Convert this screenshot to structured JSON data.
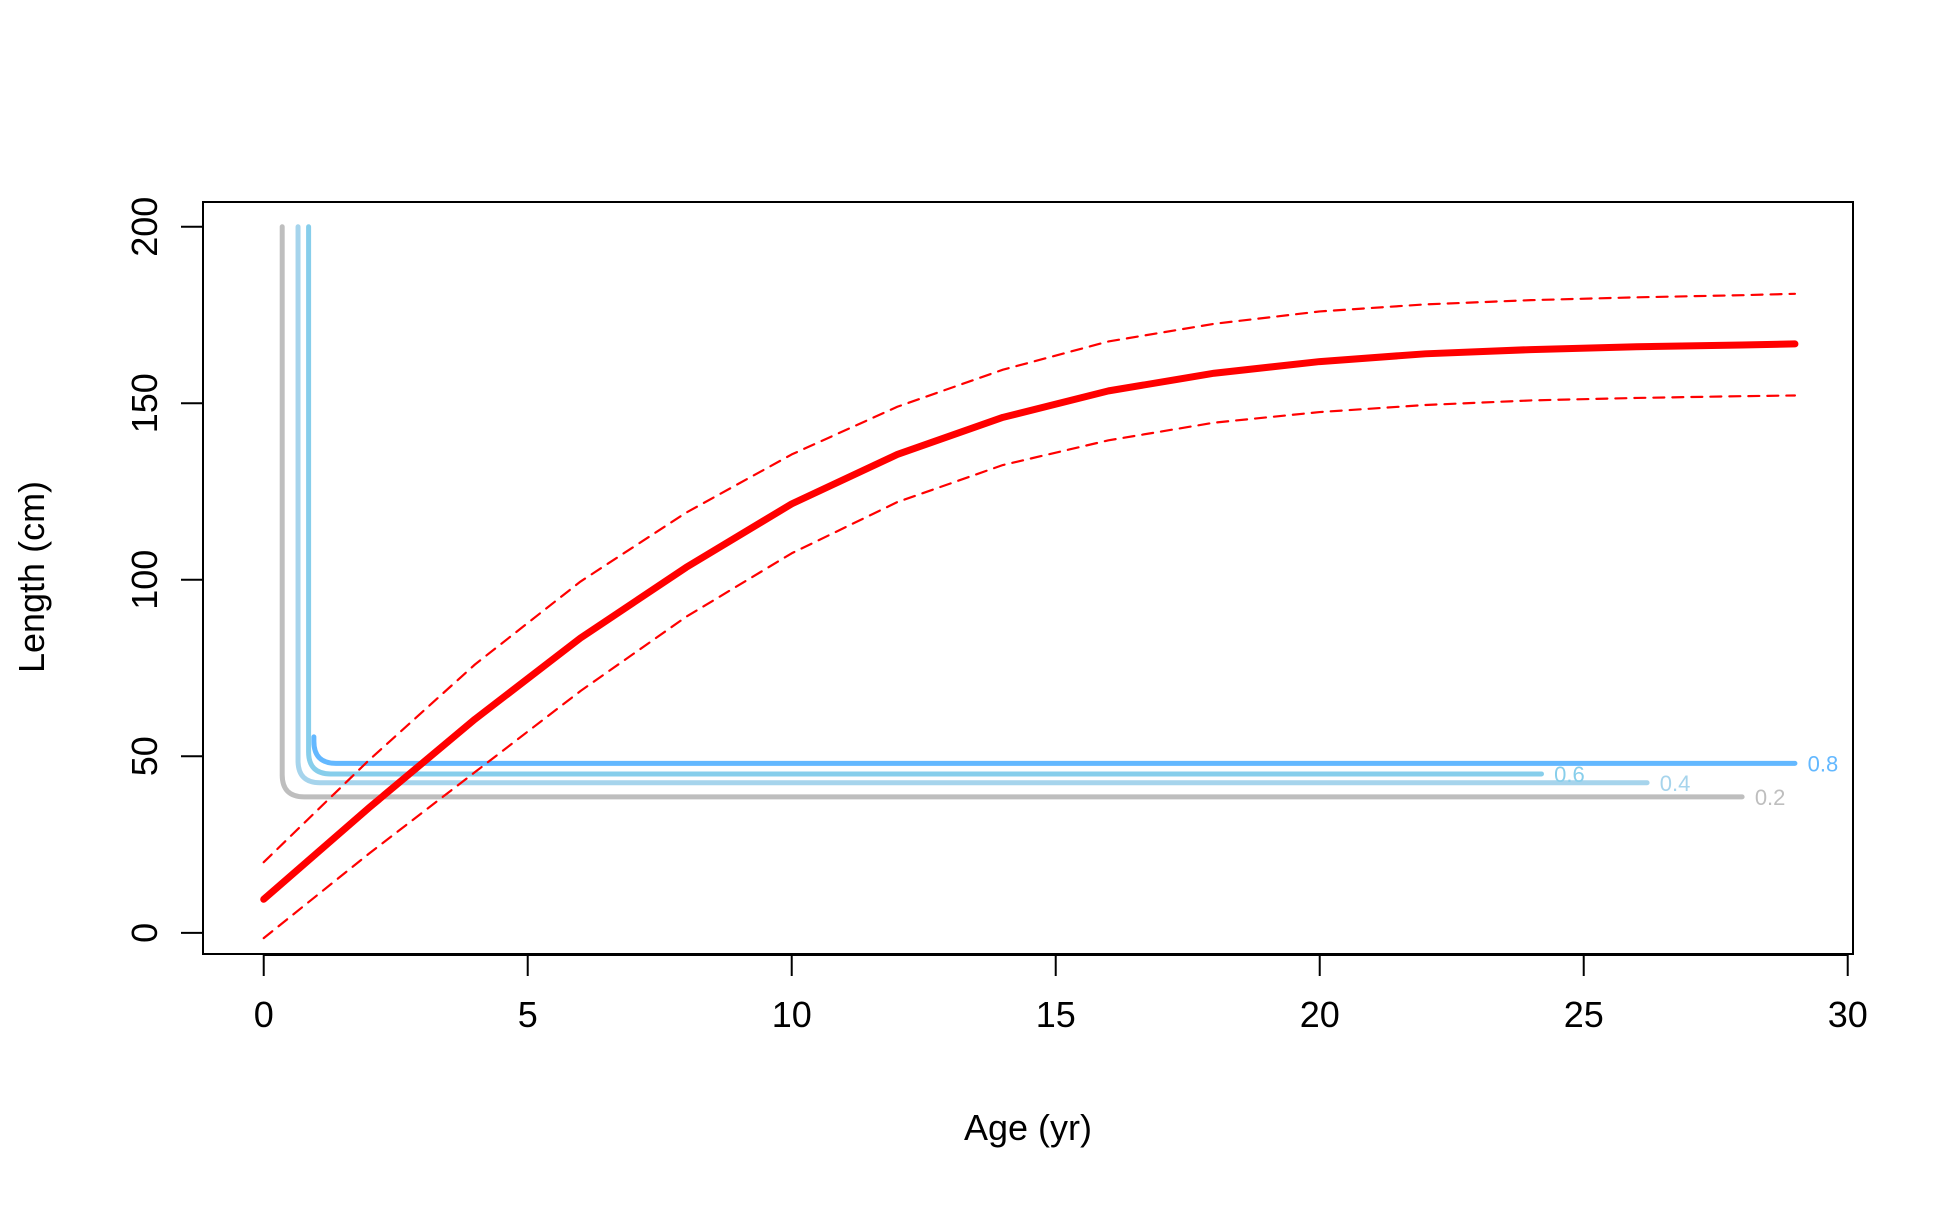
{
  "chart_data": {
    "type": "line",
    "title": "",
    "xlabel": "Age (yr)",
    "ylabel": "Length (cm)",
    "xlim": [
      -1.15,
      30.1
    ],
    "ylim": [
      -6,
      207
    ],
    "x_ticks": [
      0,
      5,
      10,
      15,
      20,
      25,
      30
    ],
    "y_ticks": [
      0,
      50,
      100,
      150,
      200
    ],
    "grid": false,
    "legend": "none",
    "series": [
      {
        "role": "mean",
        "color": "#ff0000",
        "style": "solid",
        "x": [
          0,
          2,
          4,
          6,
          8,
          10,
          12,
          14,
          16,
          18,
          20,
          22,
          24,
          26,
          28,
          29
        ],
        "y": [
          9.5,
          35.5,
          60.5,
          83.5,
          103.5,
          121.5,
          135.5,
          146.0,
          153.5,
          158.5,
          161.8,
          164.0,
          165.2,
          166.0,
          166.5,
          166.8
        ]
      },
      {
        "role": "upper",
        "color": "#ff0000",
        "style": "dashed",
        "x": [
          0,
          2,
          4,
          6,
          8,
          10,
          12,
          14,
          16,
          18,
          20,
          22,
          24,
          26,
          28,
          29
        ],
        "y": [
          20.0,
          49.0,
          76.0,
          99.5,
          119.0,
          135.5,
          149.0,
          159.5,
          167.5,
          172.5,
          176.0,
          178.0,
          179.2,
          180.0,
          180.6,
          181.0
        ]
      },
      {
        "role": "lower",
        "color": "#ff0000",
        "style": "dashed",
        "x": [
          0,
          2,
          4,
          6,
          8,
          10,
          12,
          14,
          16,
          18,
          20,
          22,
          24,
          26,
          28,
          29
        ],
        "y": [
          -1.5,
          22.5,
          45.5,
          68.5,
          89.5,
          107.5,
          122.0,
          132.5,
          139.5,
          144.5,
          147.5,
          149.5,
          150.8,
          151.5,
          152.0,
          152.2
        ]
      }
    ],
    "contours": [
      {
        "level": "0.2",
        "color": "#bebebe",
        "x_vertical": 0.35,
        "y_top": 200,
        "y_bottom": 38.5,
        "x_end": 28.0
      },
      {
        "level": "0.4",
        "color": "#a6d4ec",
        "x_vertical": 0.65,
        "y_top": 200,
        "y_bottom": 42.5,
        "x_end": 26.2
      },
      {
        "level": "0.6",
        "color": "#87ceeb",
        "x_vertical": 0.85,
        "y_top": 200,
        "y_bottom": 45.0,
        "x_end": 24.2
      },
      {
        "level": "0.8",
        "color": "#63b8ff",
        "x_vertical": 0.95,
        "y_top": 55.5,
        "y_bottom": 48.0,
        "x_end": 29.0
      }
    ]
  }
}
